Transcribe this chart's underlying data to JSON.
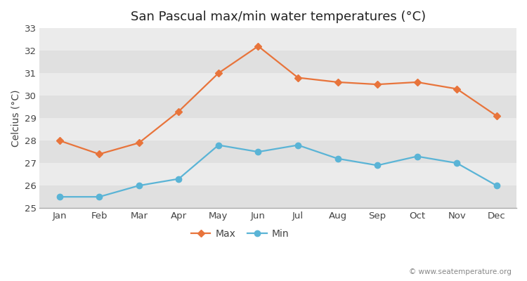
{
  "title": "San Pascual max/min water temperatures (°C)",
  "ylabel": "Celcius (°C)",
  "months": [
    "Jan",
    "Feb",
    "Mar",
    "Apr",
    "May",
    "Jun",
    "Jul",
    "Aug",
    "Sep",
    "Oct",
    "Nov",
    "Dec"
  ],
  "max_values": [
    28.0,
    27.4,
    27.9,
    29.3,
    31.0,
    32.2,
    30.8,
    30.6,
    30.5,
    30.6,
    30.3,
    29.1
  ],
  "min_values": [
    25.5,
    25.5,
    26.0,
    26.3,
    27.8,
    27.5,
    27.8,
    27.2,
    26.9,
    27.3,
    27.0,
    26.0
  ],
  "max_color": "#e8743b",
  "min_color": "#5ab4d6",
  "max_label": "Max",
  "min_label": "Min",
  "ylim_min": 25,
  "ylim_max": 33,
  "yticks": [
    25,
    26,
    27,
    28,
    29,
    30,
    31,
    32,
    33
  ],
  "fig_bg_color": "#ffffff",
  "band_light": "#ebebeb",
  "band_dark": "#e0e0e0",
  "watermark": "© www.seatemperature.org",
  "title_fontsize": 13,
  "label_fontsize": 10,
  "tick_fontsize": 9.5,
  "max_marker": "D",
  "min_marker": "o",
  "max_marker_size": 5,
  "min_marker_size": 6,
  "line_width": 1.6
}
